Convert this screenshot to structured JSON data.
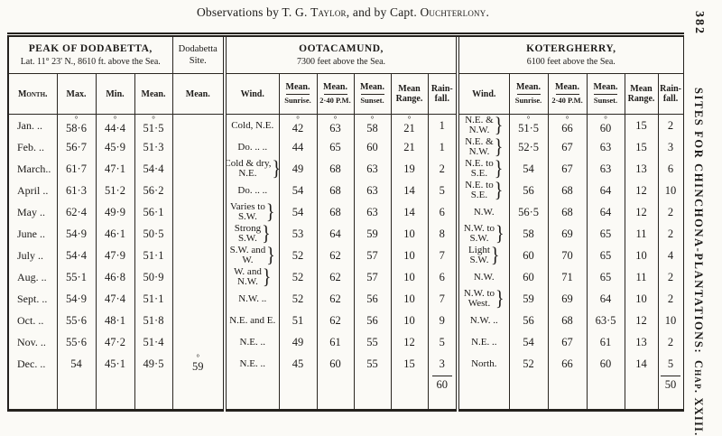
{
  "caption": {
    "pre": "Observations by T. G. ",
    "name1": "Taylor",
    "mid": ", and by Capt. ",
    "name2": "Ouchterlony",
    "end": "."
  },
  "margin": {
    "page_number": "382",
    "running_head": "SITES FOR CHINCHONA-PLANTATIONS:",
    "chapter": "Chap. XXIII."
  },
  "table": {
    "groups": [
      {
        "title": "PEAK OF DODABETTA,",
        "subtitle": "Lat. 11° 23' N., 8610 ft. above the Sea."
      },
      {
        "title": "Dodabetta",
        "subtitle": "Site."
      },
      {
        "title": "OOTACAMUND,",
        "subtitle": "7300 feet above the Sea."
      },
      {
        "title": "KOTERGHERRY,",
        "subtitle": "6100 feet above the Sea."
      }
    ],
    "subheads": {
      "month": "Month.",
      "max": "Max.",
      "min": "Min.",
      "mean": "Mean.",
      "site_mean": "Mean.",
      "wind": "Wind.",
      "mean_top": "Mean.",
      "sunrise": "Sunrise.",
      "afternoon": "2·40 P.M.",
      "sunset": "Sunset.",
      "range1": "Mean",
      "range2": "Range.",
      "rain1": "Rain-",
      "rain2": "fall."
    },
    "rows": [
      {
        "month": "Jan. ..",
        "max": "°58·6",
        "min": "°44·4",
        "mean": "°51·5",
        "site": "",
        "ow": [
          "Cold, N.E."
        ],
        "ob": false,
        "ov": [
          "°42",
          "°63",
          "°58",
          "°21",
          "1"
        ],
        "kw": [
          "N.E. &",
          "N.W."
        ],
        "kb": true,
        "kv": [
          "°51·5",
          "°66",
          "°60",
          "15",
          "2"
        ]
      },
      {
        "month": "Feb. ..",
        "max": "56·7",
        "min": "45·9",
        "mean": "51·3",
        "site": "",
        "ow": [
          "Do. .. .."
        ],
        "ob": false,
        "ov": [
          "44",
          "65",
          "60",
          "21",
          "1"
        ],
        "kw": [
          "N.E. &",
          "N.W."
        ],
        "kb": true,
        "kv": [
          "52·5",
          "67",
          "63",
          "15",
          "3"
        ]
      },
      {
        "month": "March..",
        "max": "61·7",
        "min": "47·1",
        "mean": "54·4",
        "site": "",
        "ow": [
          "Cold & dry,",
          "N.E."
        ],
        "ob": true,
        "ov": [
          "49",
          "68",
          "63",
          "19",
          "2"
        ],
        "kw": [
          "N.E. to",
          "S.E."
        ],
        "kb": true,
        "kv": [
          "54",
          "67",
          "63",
          "13",
          "6"
        ]
      },
      {
        "month": "April ..",
        "max": "61·3",
        "min": "51·2",
        "mean": "56·2",
        "site": "",
        "ow": [
          "Do. .. .."
        ],
        "ob": false,
        "ov": [
          "54",
          "68",
          "63",
          "14",
          "5"
        ],
        "kw": [
          "N.E. to",
          "S.E."
        ],
        "kb": true,
        "kv": [
          "56",
          "68",
          "64",
          "12",
          "10"
        ]
      },
      {
        "month": "May ..",
        "max": "62·4",
        "min": "49·9",
        "mean": "56·1",
        "site": "",
        "ow": [
          "Varies to",
          "S.W."
        ],
        "ob": true,
        "ov": [
          "54",
          "68",
          "63",
          "14",
          "6"
        ],
        "kw": [
          "N.W."
        ],
        "kb": false,
        "kv": [
          "56·5",
          "68",
          "64",
          "12",
          "2"
        ]
      },
      {
        "month": "June ..",
        "max": "54·9",
        "min": "46·1",
        "mean": "50·5",
        "site": "",
        "ow": [
          "Strong",
          "S.W."
        ],
        "ob": true,
        "ov": [
          "53",
          "64",
          "59",
          "10",
          "8"
        ],
        "kw": [
          "N.W. to",
          "S.W."
        ],
        "kb": true,
        "kv": [
          "58",
          "69",
          "65",
          "11",
          "2"
        ]
      },
      {
        "month": "July ..",
        "max": "54·4",
        "min": "47·9",
        "mean": "51·1",
        "site": "",
        "ow": [
          "S.W. and",
          "W."
        ],
        "ob": true,
        "ov": [
          "52",
          "62",
          "57",
          "10",
          "7"
        ],
        "kw": [
          "Light",
          "S.W."
        ],
        "kb": true,
        "kv": [
          "60",
          "70",
          "65",
          "10",
          "4"
        ]
      },
      {
        "month": "Aug. ..",
        "max": "55·1",
        "min": "46·8",
        "mean": "50·9",
        "site": "",
        "ow": [
          "W. and",
          "N.W."
        ],
        "ob": true,
        "ov": [
          "52",
          "62",
          "57",
          "10",
          "6"
        ],
        "kw": [
          "N.W."
        ],
        "kb": false,
        "kv": [
          "60",
          "71",
          "65",
          "11",
          "2"
        ]
      },
      {
        "month": "Sept. ..",
        "max": "54·9",
        "min": "47·4",
        "mean": "51·1",
        "site": "",
        "ow": [
          "N.W. .."
        ],
        "ob": false,
        "ov": [
          "52",
          "62",
          "56",
          "10",
          "7"
        ],
        "kw": [
          "N.W. to",
          "West."
        ],
        "kb": true,
        "kv": [
          "59",
          "69",
          "64",
          "10",
          "2"
        ]
      },
      {
        "month": "Oct. ..",
        "max": "55·6",
        "min": "48·1",
        "mean": "51·8",
        "site": "",
        "ow": [
          "N.E. and E."
        ],
        "ob": false,
        "ov": [
          "51",
          "62",
          "56",
          "10",
          "9"
        ],
        "kw": [
          "N.W. .."
        ],
        "kb": false,
        "kv": [
          "56",
          "68",
          "63·5",
          "12",
          "10"
        ]
      },
      {
        "month": "Nov. ..",
        "max": "55·6",
        "min": "47·2",
        "mean": "51·4",
        "site": "",
        "ow": [
          "N.E. .."
        ],
        "ob": false,
        "ov": [
          "49",
          "61",
          "55",
          "12",
          "5"
        ],
        "kw": [
          "N.E. .."
        ],
        "kb": false,
        "kv": [
          "54",
          "67",
          "61",
          "13",
          "2"
        ]
      },
      {
        "month": "Dec. ..",
        "max": "54",
        "min": "45·1",
        "mean": "49·5",
        "site": "°59",
        "ow": [
          "N.E. .."
        ],
        "ob": false,
        "ov": [
          "45",
          "60",
          "55",
          "15",
          "3"
        ],
        "kw": [
          "North."
        ],
        "kb": false,
        "kv": [
          "52",
          "66",
          "60",
          "14",
          "5"
        ]
      }
    ],
    "totals": {
      "oota_rain": "60",
      "koter_rain": "50"
    }
  }
}
